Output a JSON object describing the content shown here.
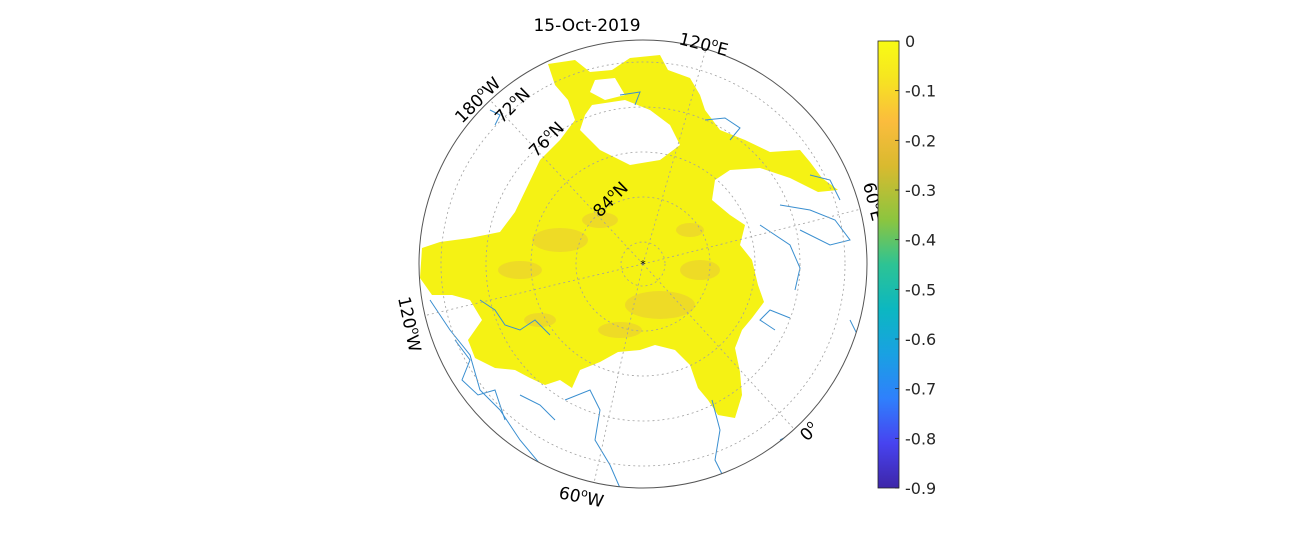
{
  "title": "15-Oct-2019",
  "longitude_labels": [
    {
      "text": "120",
      "suffix": "E",
      "id": "lon-120e"
    },
    {
      "text": "60",
      "suffix": "E",
      "id": "lon-60e"
    },
    {
      "text": "0",
      "suffix": "",
      "id": "lon-0"
    },
    {
      "text": "60",
      "suffix": "W",
      "id": "lon-60w"
    },
    {
      "text": "120",
      "suffix": "W",
      "id": "lon-120w"
    },
    {
      "text": "180",
      "suffix": "W",
      "id": "lon-180w"
    }
  ],
  "latitude_labels": [
    {
      "text": "72",
      "suffix": "N",
      "id": "lat-72n"
    },
    {
      "text": "76",
      "suffix": "N",
      "id": "lat-76n"
    },
    {
      "text": "84",
      "suffix": "N",
      "id": "lat-84n"
    }
  ],
  "colorbar": {
    "ticks": [
      "0",
      "-0.1",
      "-0.2",
      "-0.3",
      "-0.4",
      "-0.5",
      "-0.6",
      "-0.7",
      "-0.8",
      "-0.9"
    ],
    "min": -0.9,
    "max": 0,
    "colormap": [
      "#3e26a8",
      "#4743f0",
      "#2f80fc",
      "#19a1e2",
      "#0cb7c1",
      "#2dc394",
      "#8cc53f",
      "#d9ba2f",
      "#fbbc3d",
      "#f6e620",
      "#f9fb14"
    ]
  },
  "colors": {
    "ice": "#f5f214",
    "coast": "#3a8fd0",
    "grid": "#a0a0a0",
    "frame": "#555555"
  }
}
